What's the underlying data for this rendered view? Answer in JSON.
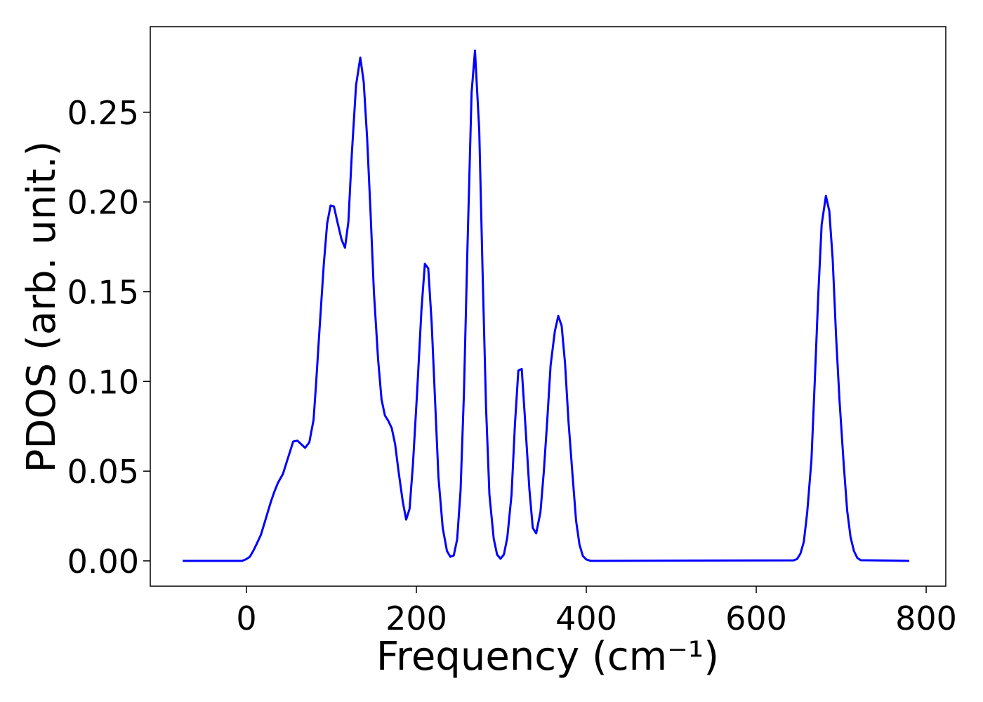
{
  "chart_data": {
    "type": "line",
    "x_label": "Frequency (cm⁻¹)",
    "y_label": "PDOS (arb. unit.)",
    "xlim": [
      -113.2,
      823.1
    ],
    "ylim": [
      -0.0141,
      0.2977
    ],
    "xticks": [
      0,
      200,
      400,
      600,
      800
    ],
    "yticks": [
      {
        "value": 0,
        "label": "0.00"
      },
      {
        "value": 0.05,
        "label": "0.05"
      },
      {
        "value": 0.1,
        "label": "0.10"
      },
      {
        "value": 0.15,
        "label": "0.15"
      },
      {
        "value": 0.2,
        "label": "0.20"
      },
      {
        "value": 0.25,
        "label": "0.25"
      }
    ],
    "series": [
      {
        "color": "#0000ff",
        "x": [
          -75,
          -5,
          0,
          4,
          8,
          12,
          17,
          21,
          25,
          29,
          33,
          37,
          43,
          49,
          55,
          60,
          69,
          74,
          79,
          82,
          86,
          91,
          95,
          99,
          103,
          107,
          112,
          116,
          120,
          124,
          129,
          134,
          138,
          142,
          146,
          150,
          155,
          159,
          163,
          167,
          171,
          175,
          179,
          184,
          188,
          192,
          196,
          201,
          206,
          210,
          214,
          218,
          222,
          226,
          231,
          236,
          240,
          244,
          248,
          252,
          256,
          260,
          265,
          269,
          274,
          278,
          282,
          286,
          291,
          295,
          299,
          303,
          307,
          312,
          316,
          320,
          324,
          328,
          333,
          337,
          341,
          346,
          350,
          354,
          358,
          363,
          367,
          371,
          375,
          379,
          384,
          388,
          392,
          396,
          400,
          405,
          644,
          648,
          652,
          656,
          660,
          665,
          669,
          673,
          677,
          682,
          686,
          690,
          694,
          698,
          703,
          707,
          711,
          715,
          719,
          723,
          780
        ],
        "values": [
          0,
          0,
          0.001,
          0.0023,
          0.0055,
          0.0094,
          0.0145,
          0.0207,
          0.027,
          0.0333,
          0.0387,
          0.0434,
          0.0485,
          0.0575,
          0.0665,
          0.067,
          0.063,
          0.066,
          0.0786,
          0.099,
          0.129,
          0.165,
          0.188,
          0.198,
          0.1975,
          0.189,
          0.179,
          0.1745,
          0.189,
          0.2265,
          0.265,
          0.2805,
          0.267,
          0.236,
          0.195,
          0.15,
          0.112,
          0.09,
          0.081,
          0.078,
          0.074,
          0.065,
          0.05,
          0.033,
          0.023,
          0.029,
          0.054,
          0.095,
          0.14,
          0.1655,
          0.163,
          0.1326,
          0.0896,
          0.0466,
          0.0184,
          0.0055,
          0.0023,
          0.003,
          0.012,
          0.039,
          0.0935,
          0.172,
          0.261,
          0.2844,
          0.24,
          0.16,
          0.0857,
          0.0368,
          0.0125,
          0.0035,
          0.0012,
          0.0035,
          0.0129,
          0.0368,
          0.0759,
          0.106,
          0.107,
          0.078,
          0.04,
          0.0184,
          0.0153,
          0.027,
          0.0497,
          0.078,
          0.109,
          0.128,
          0.1365,
          0.131,
          0.11,
          0.078,
          0.0466,
          0.0223,
          0.009,
          0.0027,
          0.0008,
          0,
          0.0003,
          0.001,
          0.004,
          0.0106,
          0.027,
          0.0563,
          0.1013,
          0.148,
          0.1874,
          0.2034,
          0.195,
          0.168,
          0.125,
          0.0896,
          0.0536,
          0.0282,
          0.0133,
          0.0055,
          0.0016,
          0.0004,
          0
        ]
      }
    ]
  }
}
